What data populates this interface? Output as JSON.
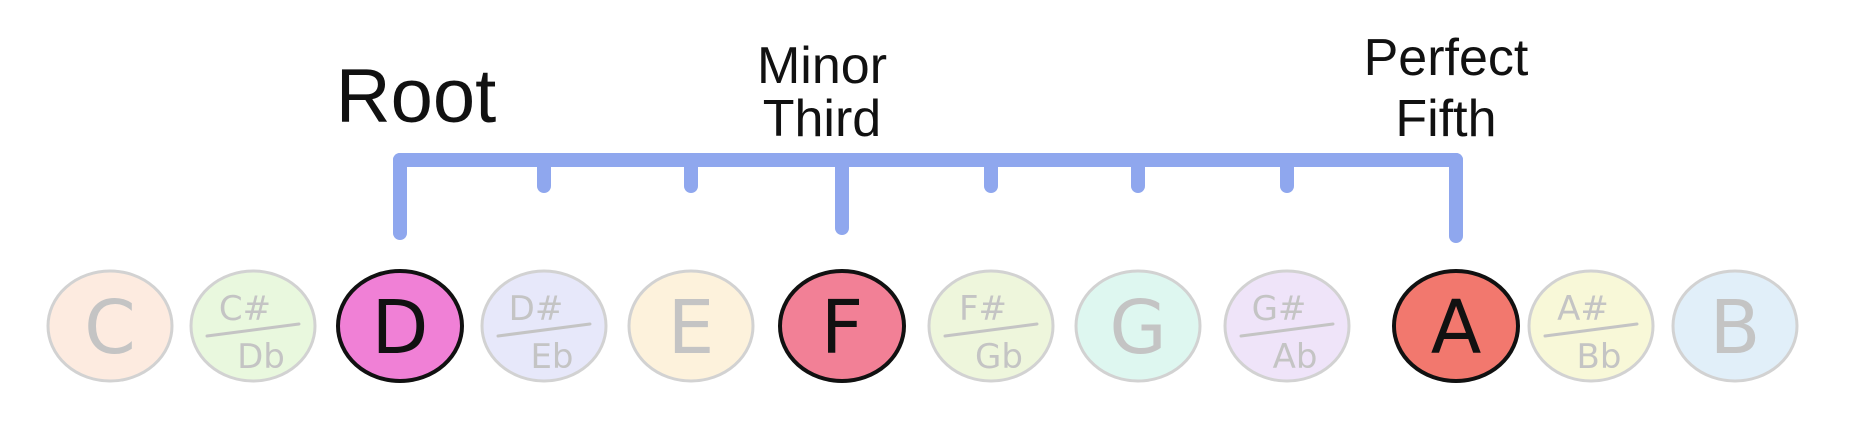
{
  "colors": {
    "bracket": "#8fa7ee",
    "outline_active": "#111111",
    "outline_faded": "#d2d2d2",
    "text_active": "#111111",
    "text_faded": "#c4c4c4"
  },
  "labels": {
    "root": "Root",
    "third_line1": "Minor",
    "third_line2": "Third",
    "fifth_line1": "Perfect",
    "fifth_line2": "Fifth"
  },
  "notes": [
    {
      "id": "c",
      "sharp": null,
      "flat": null,
      "name": "C",
      "active": false,
      "color": "#fdebe0"
    },
    {
      "id": "cs",
      "sharp": "C#",
      "flat": "Db",
      "name": null,
      "active": false,
      "color": "#e9f8de"
    },
    {
      "id": "d",
      "sharp": null,
      "flat": null,
      "name": "D",
      "active": true,
      "color": "#f080d6"
    },
    {
      "id": "ds",
      "sharp": "D#",
      "flat": "Eb",
      "name": null,
      "active": false,
      "color": "#e7e8fa"
    },
    {
      "id": "e",
      "sharp": null,
      "flat": null,
      "name": "E",
      "active": false,
      "color": "#fdf2dc"
    },
    {
      "id": "f",
      "sharp": null,
      "flat": null,
      "name": "F",
      "active": true,
      "color": "#f28096"
    },
    {
      "id": "fs",
      "sharp": "F#",
      "flat": "Gb",
      "name": null,
      "active": false,
      "color": "#eef6dc"
    },
    {
      "id": "g",
      "sharp": null,
      "flat": null,
      "name": "G",
      "active": false,
      "color": "#def7f0"
    },
    {
      "id": "gs",
      "sharp": "G#",
      "flat": "Ab",
      "name": null,
      "active": false,
      "color": "#efe4f9"
    },
    {
      "id": "a",
      "sharp": null,
      "flat": null,
      "name": "A",
      "active": true,
      "color": "#f2786e"
    },
    {
      "id": "as",
      "sharp": "A#",
      "flat": "Bb",
      "name": null,
      "active": false,
      "color": "#f8f8d8"
    },
    {
      "id": "b",
      "sharp": null,
      "flat": null,
      "name": "B",
      "active": false,
      "color": "#e1eff9"
    }
  ]
}
